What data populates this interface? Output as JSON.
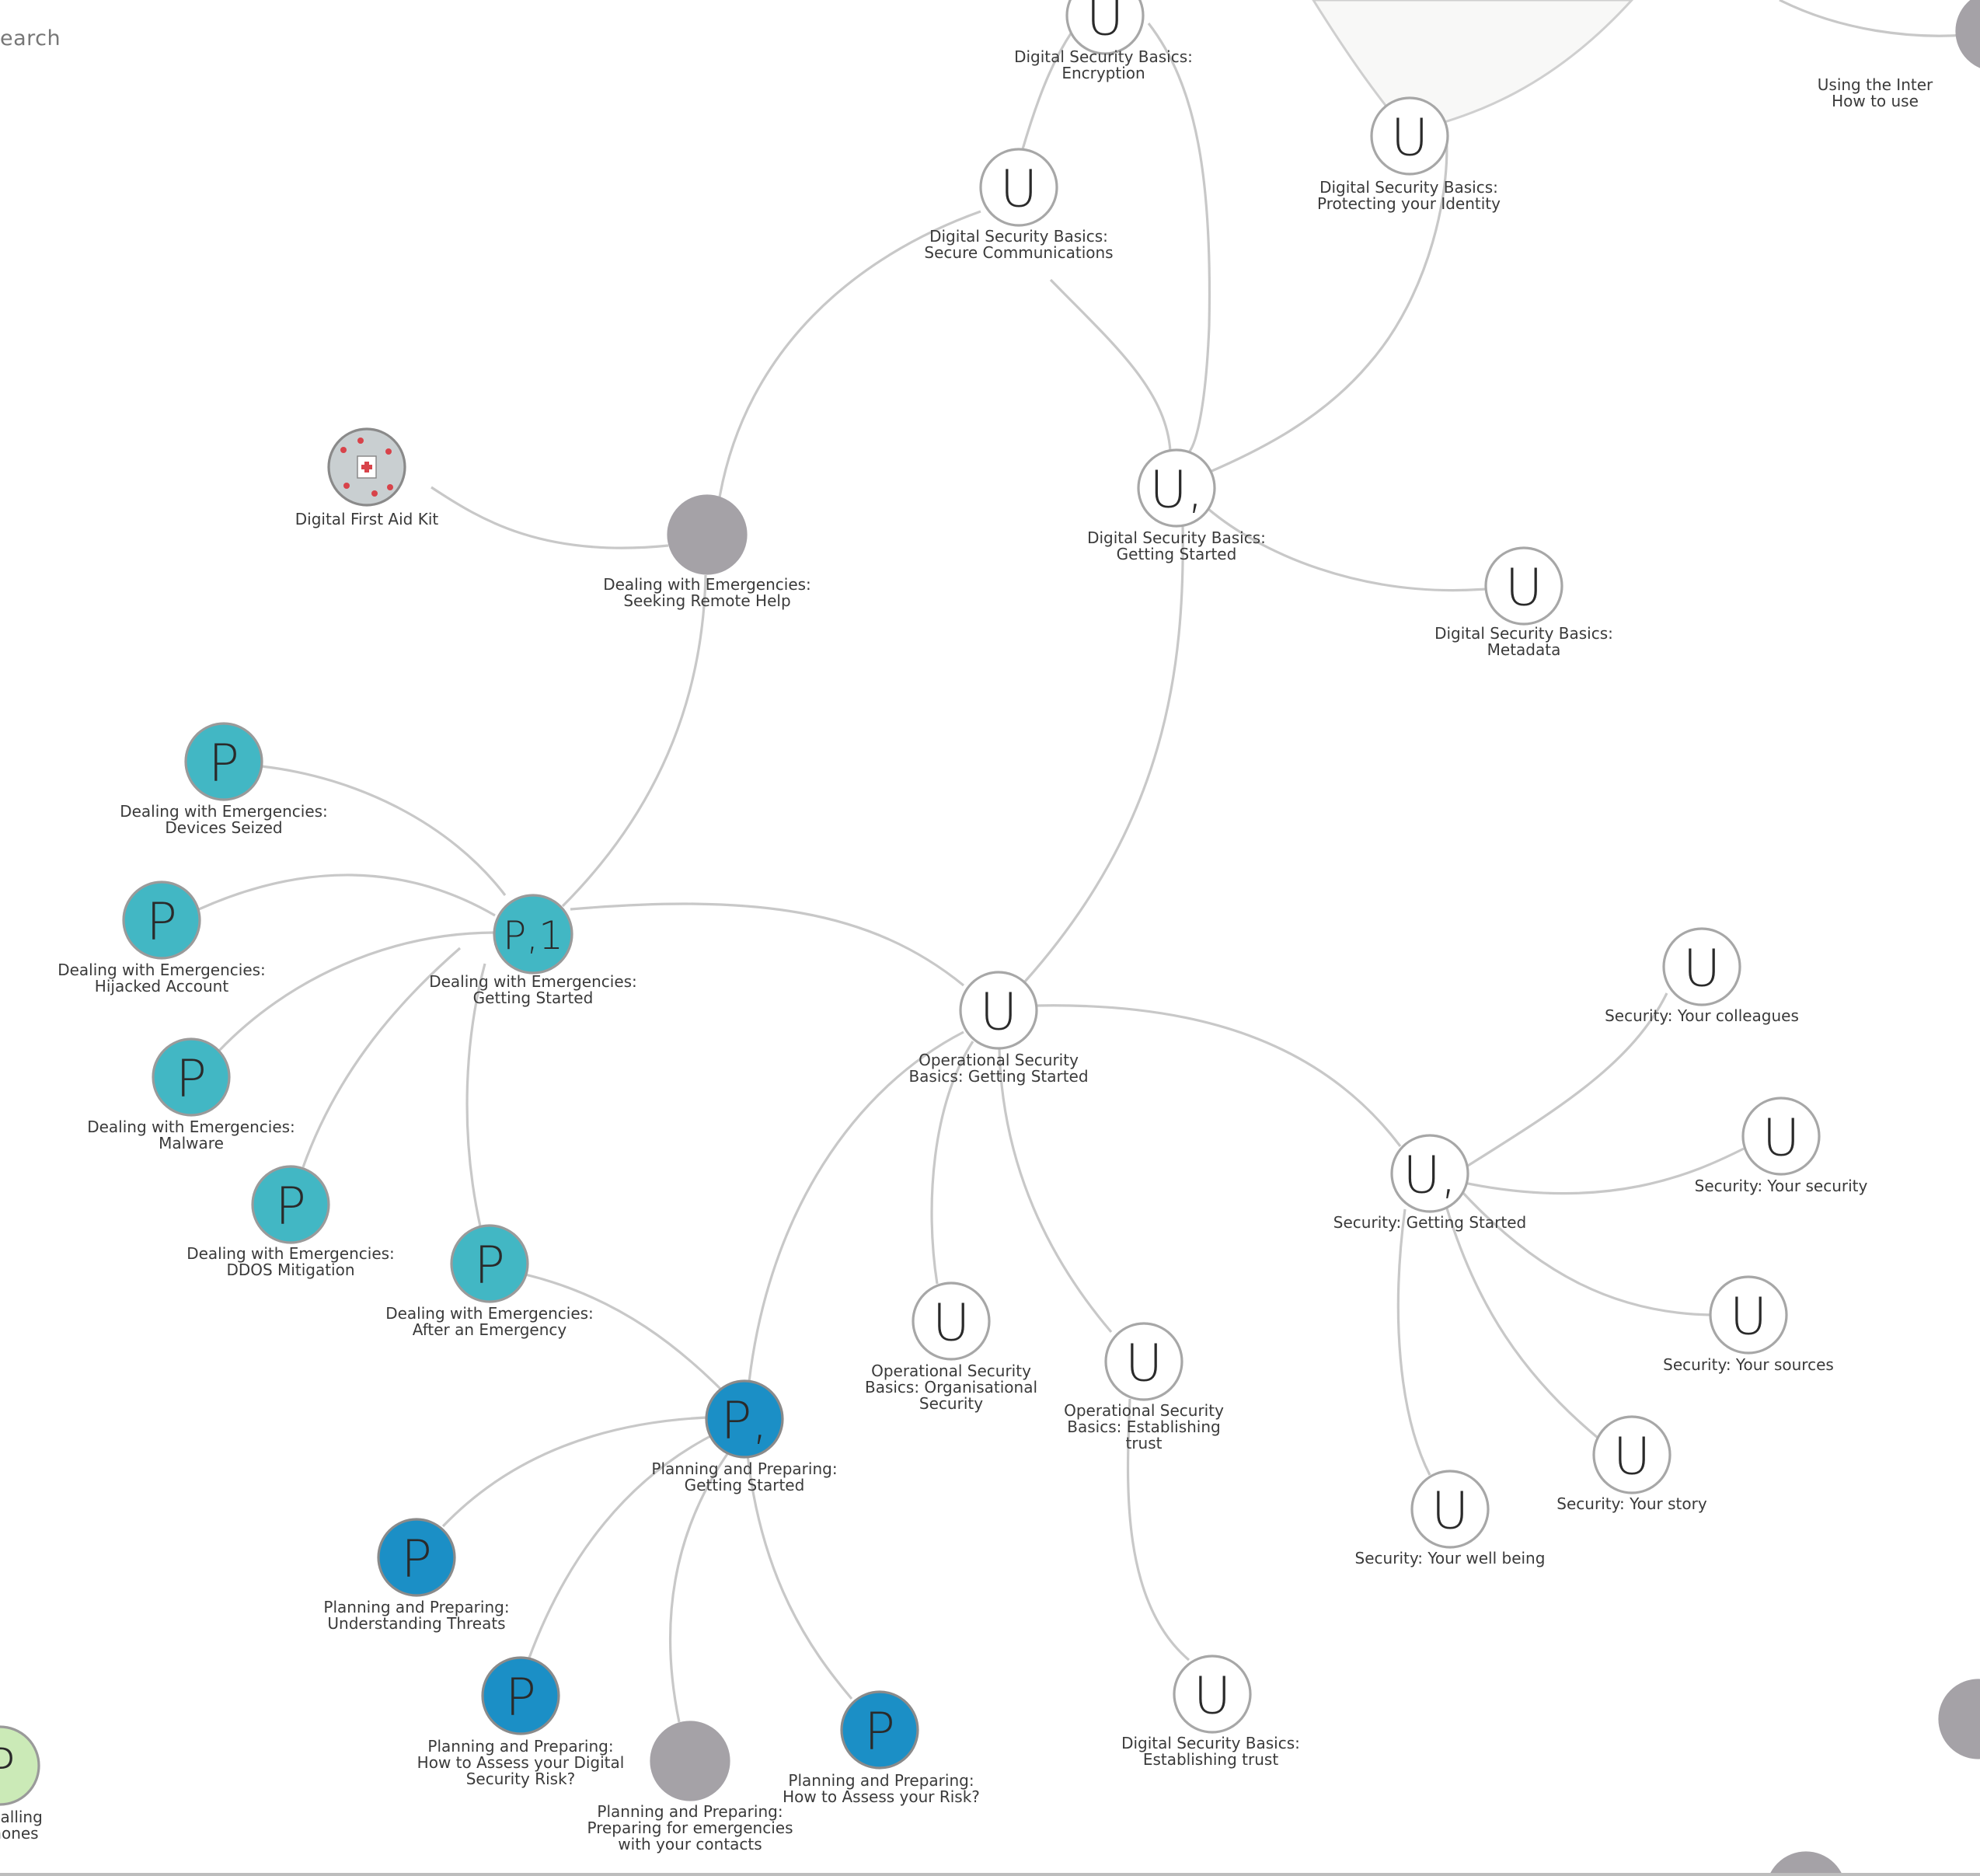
{
  "search": {
    "label": "earch"
  },
  "colors": {
    "edge": "#c8c8c8",
    "user_node_fill": "#ffffff",
    "dealing_emergencies_fill": "#42b7c4",
    "planning_preparing_fill": "#1b8fc6",
    "placeholder_node_fill": "#a5a2a7",
    "calling_node_fill": "#cbeab7"
  },
  "nodes": [
    {
      "id": "dsb-encryption",
      "glyph": "U",
      "type": "u",
      "label": [
        "Digital Security Basics:",
        "Encryption"
      ]
    },
    {
      "id": "dsb-identity",
      "glyph": "U",
      "type": "u",
      "label": [
        "Digital Security Basics:",
        "Protecting your Identity"
      ]
    },
    {
      "id": "internet-partial",
      "glyph": "",
      "type": "g",
      "label": [
        "Using the Inter",
        "How to use"
      ]
    },
    {
      "id": "dsb-secure-comms",
      "glyph": "U",
      "type": "u",
      "label": [
        "Digital Security Basics:",
        "Secure Communications"
      ]
    },
    {
      "id": "dfak",
      "glyph": "",
      "type": "img",
      "label": [
        "Digital First Aid Kit"
      ]
    },
    {
      "id": "de-remote-help",
      "glyph": "",
      "type": "g",
      "label": [
        "Dealing with Emergencies:",
        "Seeking Remote Help"
      ]
    },
    {
      "id": "dsb-getting-started",
      "glyph": "U,",
      "type": "u",
      "label": [
        "Digital Security Basics:",
        "Getting Started"
      ]
    },
    {
      "id": "dsb-metadata",
      "glyph": "U",
      "type": "u",
      "label": [
        "Digital Security Basics:",
        "Metadata"
      ]
    },
    {
      "id": "de-devices-seized",
      "glyph": "P",
      "type": "p1",
      "label": [
        "Dealing with Emergencies:",
        "Devices Seized"
      ]
    },
    {
      "id": "de-hijacked",
      "glyph": "P",
      "type": "p1",
      "label": [
        "Dealing with Emergencies:",
        "Hijacked Account"
      ]
    },
    {
      "id": "de-getting-started",
      "glyph": "P,1",
      "type": "p1",
      "label": [
        "Dealing with Emergencies:",
        "Getting Started"
      ]
    },
    {
      "id": "de-malware",
      "glyph": "P",
      "type": "p1",
      "label": [
        "Dealing with Emergencies:",
        "Malware"
      ]
    },
    {
      "id": "de-ddos",
      "glyph": "P",
      "type": "p1",
      "label": [
        "Dealing with Emergencies:",
        "DDOS Mitigation"
      ]
    },
    {
      "id": "de-after",
      "glyph": "P",
      "type": "p1",
      "label": [
        "Dealing with Emergencies:",
        "After an Emergency"
      ]
    },
    {
      "id": "osb-getting-started",
      "glyph": "U",
      "type": "u",
      "label": [
        "Operational Security",
        "Basics: Getting Started"
      ]
    },
    {
      "id": "sec-colleagues",
      "glyph": "U",
      "type": "u",
      "label": [
        "Security: Your colleagues"
      ]
    },
    {
      "id": "sec-your-security",
      "glyph": "U",
      "type": "u",
      "label": [
        "Security: Your security"
      ]
    },
    {
      "id": "sec-getting-started",
      "glyph": "U,",
      "type": "u",
      "label": [
        "Security: Getting Started"
      ]
    },
    {
      "id": "sec-sources",
      "glyph": "U",
      "type": "u",
      "label": [
        "Security: Your sources"
      ]
    },
    {
      "id": "sec-story",
      "glyph": "U",
      "type": "u",
      "label": [
        "Security: Your story"
      ]
    },
    {
      "id": "sec-well-being",
      "glyph": "U",
      "type": "u",
      "label": [
        "Security: Your well being"
      ]
    },
    {
      "id": "osb-organisational",
      "glyph": "U",
      "type": "u",
      "label": [
        "Operational Security",
        "Basics: Organisational",
        "Security"
      ]
    },
    {
      "id": "osb-trust",
      "glyph": "U",
      "type": "u",
      "label": [
        "Operational Security",
        "Basics: Establishing",
        "trust"
      ]
    },
    {
      "id": "dsb-trust",
      "glyph": "U",
      "type": "u",
      "label": [
        "Digital Security Basics:",
        "Establishing trust"
      ]
    },
    {
      "id": "pp-getting-started",
      "glyph": "P,",
      "type": "p2",
      "label": [
        "Planning and Preparing:",
        "Getting Started"
      ]
    },
    {
      "id": "pp-threats",
      "glyph": "P",
      "type": "p2",
      "label": [
        "Planning and Preparing:",
        "Understanding Threats"
      ]
    },
    {
      "id": "pp-digital-risk",
      "glyph": "P",
      "type": "p2",
      "label": [
        "Planning and Preparing:",
        "How to Assess your Digital",
        "Security Risk?"
      ]
    },
    {
      "id": "pp-contacts",
      "glyph": "",
      "type": "g",
      "label": [
        "Planning and Preparing:",
        "Preparing for emergencies",
        "with your contacts"
      ]
    },
    {
      "id": "pp-risk",
      "glyph": "P",
      "type": "p2",
      "label": [
        "Planning and Preparing:",
        "How to Assess your Risk?"
      ]
    },
    {
      "id": "calling-partial",
      "glyph": "P",
      "type": "lg",
      "label": [
        "ely: Calling",
        "ar Phones"
      ]
    },
    {
      "id": "right-grey-partial",
      "glyph": "",
      "type": "g",
      "label": []
    },
    {
      "id": "bottom-grey-partial",
      "glyph": "",
      "type": "g",
      "label": []
    }
  ]
}
